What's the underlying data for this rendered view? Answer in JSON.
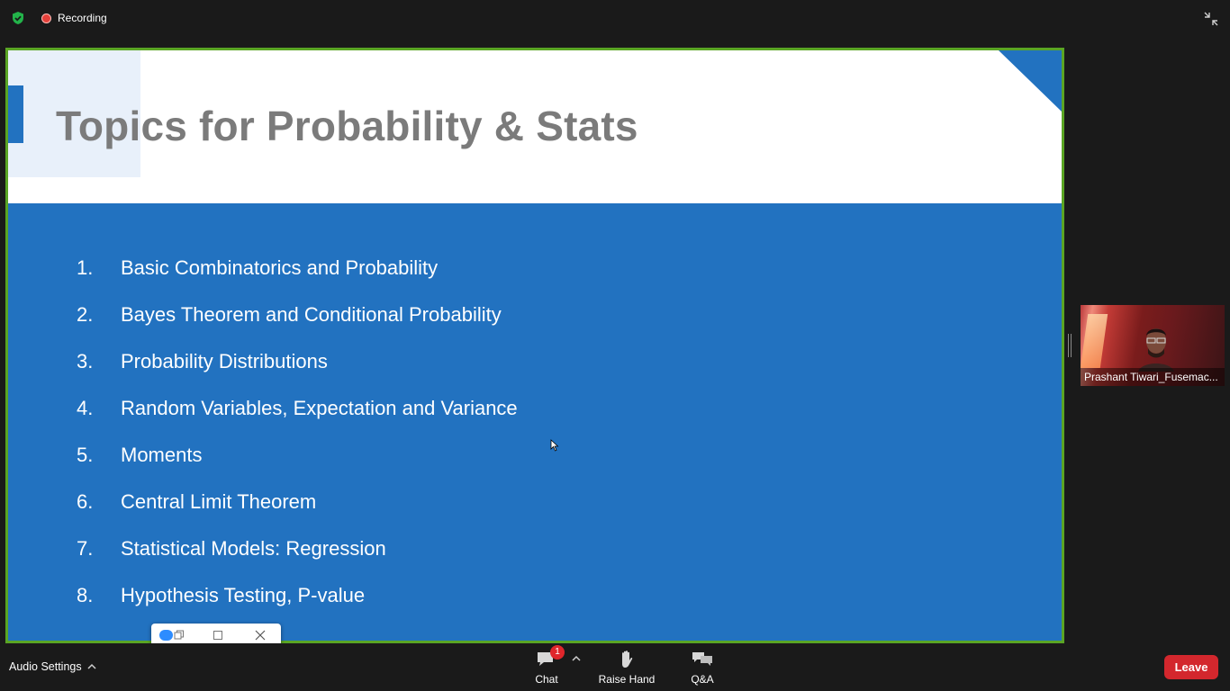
{
  "topbar": {
    "security_icon": "shield-check-icon",
    "recording_label": "Recording",
    "exit_fullscreen_icon": "exit-fullscreen-icon"
  },
  "slide": {
    "title": "Topics for Probability & Stats",
    "topics": [
      {
        "num": "1.",
        "text": "Basic Combinatorics and Probability"
      },
      {
        "num": "2.",
        "text": "Bayes Theorem and Conditional Probability"
      },
      {
        "num": "3.",
        "text": "Probability Distributions"
      },
      {
        "num": "4.",
        "text": "Random Variables, Expectation and Variance"
      },
      {
        "num": "5.",
        "text": "Moments"
      },
      {
        "num": "6.",
        "text": "Central Limit Theorem"
      },
      {
        "num": "7.",
        "text": "Statistical Models: Regression"
      },
      {
        "num": "8.",
        "text": "Hypothesis Testing, P-value"
      }
    ]
  },
  "participant": {
    "name": "Prashant Tiwari_Fusemac..."
  },
  "toolbar": {
    "audio_settings": "Audio Settings",
    "chat_label": "Chat",
    "chat_badge": "1",
    "raise_hand_label": "Raise Hand",
    "qa_label": "Q&A",
    "leave_label": "Leave"
  },
  "colors": {
    "slide_blue": "#2272c0",
    "share_border": "#5aa524",
    "leave_red": "#d3272d",
    "badge_red": "#e0262b"
  }
}
